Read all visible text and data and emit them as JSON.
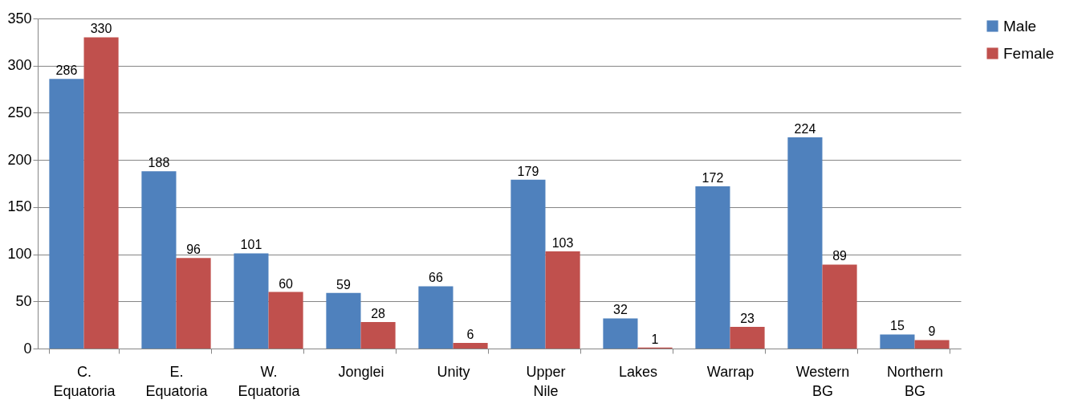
{
  "chart_data": {
    "type": "bar",
    "categories": [
      "C. Equatoria",
      "E. Equatoria",
      "W. Equatoria",
      "Jonglei",
      "Unity",
      "Upper Nile",
      "Lakes",
      "Warrap",
      "Western BG",
      "Northern BG"
    ],
    "series": [
      {
        "name": "Male",
        "color": "#4f81bd",
        "values": [
          286,
          188,
          101,
          59,
          66,
          179,
          32,
          172,
          224,
          15
        ]
      },
      {
        "name": "Female",
        "color": "#c0504d",
        "values": [
          330,
          96,
          60,
          28,
          6,
          103,
          1,
          23,
          89,
          9
        ]
      }
    ],
    "ylim": [
      0,
      350
    ],
    "yticks": [
      0,
      50,
      100,
      150,
      200,
      250,
      300,
      350
    ],
    "grid": "y",
    "legend": "right",
    "data_labels": true
  }
}
